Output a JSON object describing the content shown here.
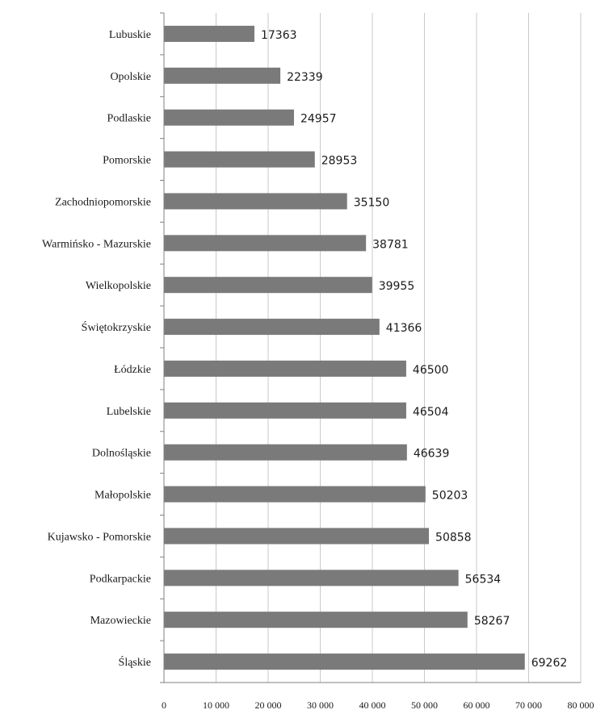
{
  "chart_data": {
    "type": "bar",
    "orientation": "horizontal",
    "title": "",
    "xlabel": "",
    "ylabel": "",
    "xlim": [
      0,
      80000
    ],
    "x_ticks": [
      0,
      10000,
      20000,
      30000,
      40000,
      50000,
      60000,
      70000,
      80000
    ],
    "x_tick_labels": [
      "0",
      "10 000",
      "20 000",
      "30 000",
      "40 000",
      "50 000",
      "60 000",
      "70 000",
      "80 000"
    ],
    "grid": "vertical",
    "legend": "none",
    "bar_color": "#7a7a7a",
    "categories": [
      "Lubuskie",
      "Opolskie",
      "Podlaskie",
      "Pomorskie",
      "Zachodniopomorskie",
      "Warmińsko - Mazurskie",
      "Wielkopolskie",
      "Świętokrzyskie",
      "Łódzkie",
      "Lubelskie",
      "Dolnośląskie",
      "Małopolskie",
      "Kujawsko - Pomorskie",
      "Podkarpackie",
      "Mazowieckie",
      "Śląskie"
    ],
    "values": [
      17363,
      22339,
      24957,
      28953,
      35150,
      38781,
      39955,
      41366,
      46500,
      46504,
      46639,
      50203,
      50858,
      56534,
      58267,
      69262
    ],
    "value_labels": [
      "17363",
      "22339",
      "24957",
      "28953",
      "35150",
      "38781",
      "39955",
      "41366",
      "46500",
      "46504",
      "46639",
      "50203",
      "50858",
      "56534",
      "58267",
      "69262"
    ]
  }
}
